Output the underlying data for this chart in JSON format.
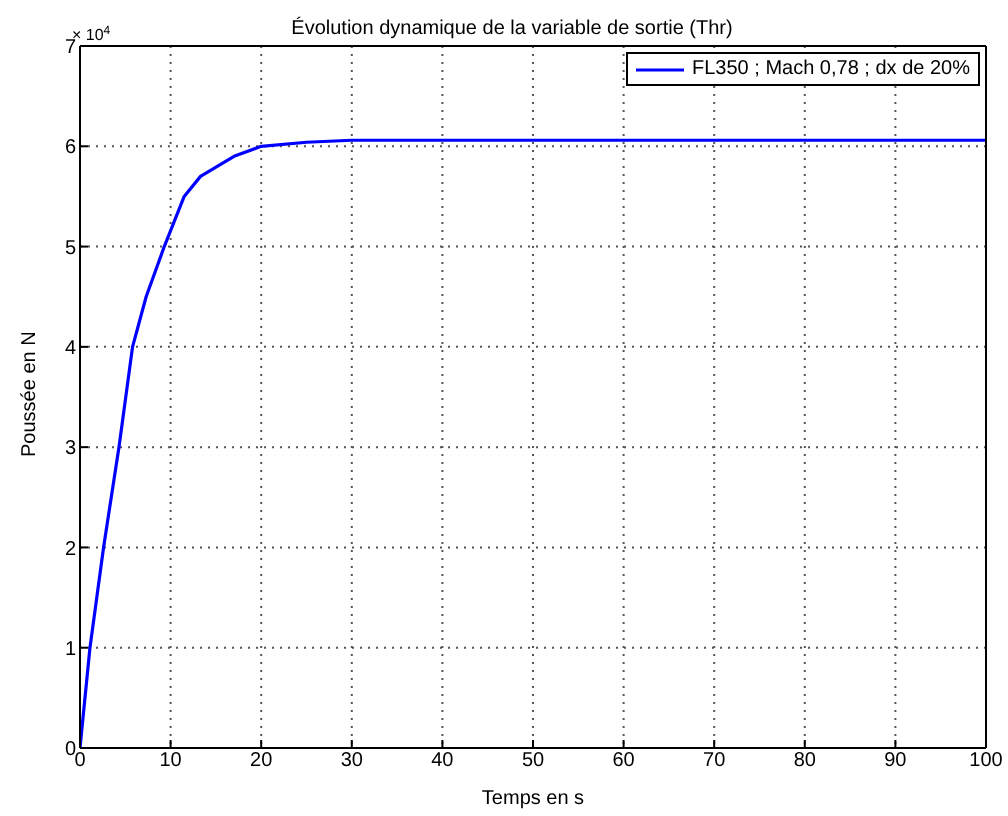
{
  "chart_data": {
    "type": "line",
    "title": "Évolution dynamique de la variable de sortie (Thr)",
    "xlabel": "Temps en s",
    "ylabel": "Poussée en N",
    "annotations": [
      "× 10$^{4}$"
    ],
    "x": [
      0,
      1.1,
      2.6,
      4.3,
      5.8,
      7.3,
      9.3,
      11.5,
      13.3,
      17,
      20,
      25,
      30,
      100
    ],
    "series": [
      {
        "name": "FL350 ; Mach 0,78 ; dx de 20%",
        "color": "#0000ff",
        "values": [
          0,
          1,
          2,
          3,
          4,
          4.5,
          5,
          5.5,
          5.7,
          5.9,
          6,
          6.04,
          6.06,
          6.06
        ]
      }
    ],
    "xlim": [
      0,
      100
    ],
    "xticks": [
      0,
      10,
      20,
      30,
      40,
      50,
      60,
      70,
      80,
      90,
      100
    ],
    "ylim": [
      0,
      7
    ],
    "yticks": [
      0,
      1,
      2,
      3,
      4,
      5,
      6,
      7
    ],
    "grid": true,
    "legend": "top right",
    "marker": "none",
    "line_style": "solid"
  }
}
